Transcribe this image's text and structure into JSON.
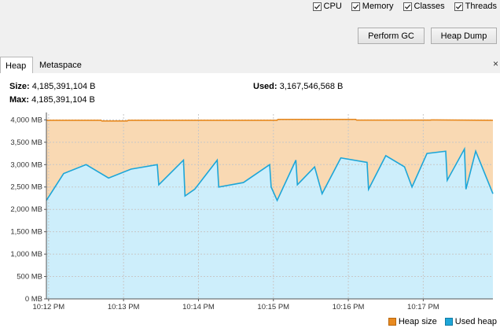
{
  "monitors": {
    "cpu": {
      "label": "CPU",
      "checked": true
    },
    "memory": {
      "label": "Memory",
      "checked": true
    },
    "classes": {
      "label": "Classes",
      "checked": true
    },
    "threads": {
      "label": "Threads",
      "checked": true
    }
  },
  "buttons": {
    "perform_gc": "Perform GC",
    "heap_dump": "Heap Dump"
  },
  "tabs": [
    {
      "label": "Heap",
      "selected": true
    },
    {
      "label": "Metaspace",
      "selected": false
    }
  ],
  "close_glyph": "×",
  "stats": {
    "size_label": "Size:",
    "size_value": "4,185,391,104 B",
    "max_label": "Max:",
    "max_value": "4,185,391,104 B",
    "used_label": "Used:",
    "used_value": "3,167,546,568 B"
  },
  "colors": {
    "heap_size_fill": "#f9d9b3",
    "heap_size_line": "#e88a21",
    "used_heap_fill": "#cdeefb",
    "used_heap_line": "#1da6d8"
  },
  "chart_data": {
    "type": "area",
    "y_ticks": [
      "4,000 MB",
      "3,500 MB",
      "3,000 MB",
      "2,500 MB",
      "2,000 MB",
      "1,500 MB",
      "1,000 MB",
      "500 MB",
      "0 MB"
    ],
    "y_tick_values": [
      4000,
      3500,
      3000,
      2500,
      2000,
      1500,
      1000,
      500,
      0
    ],
    "x_ticks": [
      "10:12 PM",
      "10:13 PM",
      "10:14 PM",
      "10:15 PM",
      "10:16 PM",
      "10:17 PM"
    ],
    "x_tick_values": [
      0,
      1,
      2,
      3,
      4,
      5
    ],
    "xlim": [
      -0.03,
      5.93
    ],
    "ylim": [
      0,
      4130
    ],
    "legend_position": "bottom-right",
    "series": [
      {
        "name": "Heap size",
        "x": [
          -0.03,
          0.7,
          0.71,
          1.05,
          1.06,
          3.05,
          3.06,
          4.1,
          4.11,
          5.1,
          5.11,
          5.93
        ],
        "values": [
          3990,
          3990,
          3975,
          3975,
          3990,
          3990,
          4010,
          4010,
          3995,
          3995,
          4000,
          3990
        ]
      },
      {
        "name": "Used heap",
        "x": [
          -0.03,
          0.2,
          0.5,
          0.8,
          1.1,
          1.45,
          1.47,
          1.8,
          1.82,
          1.95,
          2.25,
          2.27,
          2.6,
          2.95,
          2.97,
          3.05,
          3.3,
          3.32,
          3.55,
          3.65,
          3.9,
          4.25,
          4.27,
          4.5,
          4.75,
          4.85,
          5.05,
          5.3,
          5.32,
          5.55,
          5.57,
          5.7,
          5.93
        ],
        "values": [
          2200,
          2800,
          3000,
          2700,
          2900,
          3000,
          2550,
          3100,
          2300,
          2450,
          3100,
          2500,
          2600,
          3000,
          2500,
          2200,
          3100,
          2550,
          2950,
          2350,
          3150,
          3050,
          2450,
          3200,
          2950,
          2500,
          3250,
          3300,
          2650,
          3350,
          2450,
          3300,
          2350
        ]
      }
    ]
  }
}
